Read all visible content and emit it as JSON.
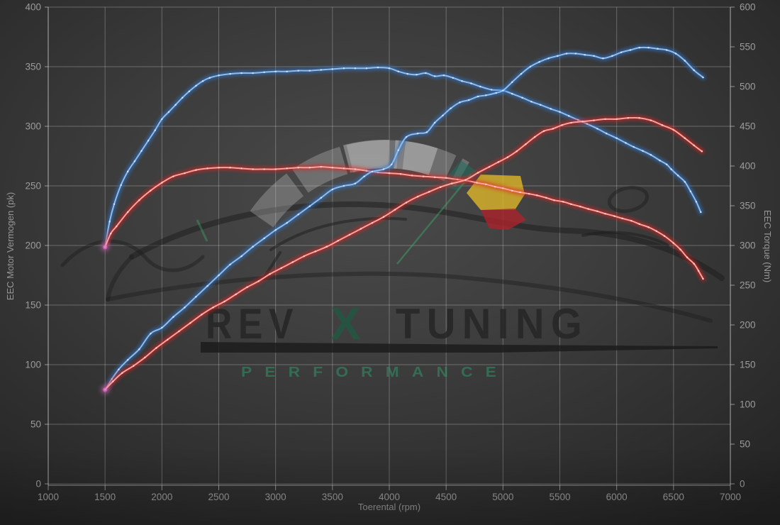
{
  "chart_data": {
    "type": "line",
    "title": "",
    "xlabel": "Toerental (rpm)",
    "ylabel_left": "EEC Motor Vermogen (pk)",
    "ylabel_right": "EEC Torque (Nm)",
    "x_range": [
      1000,
      7000
    ],
    "y_left_range": [
      0,
      400
    ],
    "y_right_range": [
      0,
      600
    ],
    "x_ticks": [
      1000,
      1500,
      2000,
      2500,
      3000,
      3500,
      4000,
      4500,
      5000,
      5500,
      6000,
      6500,
      7000
    ],
    "y_left_ticks": [
      0,
      50,
      100,
      150,
      200,
      250,
      300,
      350,
      400
    ],
    "y_right_ticks": [
      0,
      50,
      100,
      150,
      200,
      250,
      300,
      350,
      400,
      450,
      500,
      550,
      600
    ],
    "grid": true,
    "legend": "none",
    "series": [
      {
        "name": "torque-curve-blue",
        "axis": "right",
        "unit": "Nm",
        "peak": 524,
        "color_core": "#8fbcee",
        "color_glow": "#2e78d2",
        "color_dot": "#d8e8ff",
        "points": [
          [
            1500,
            298
          ],
          [
            1540,
            330
          ],
          [
            1580,
            352
          ],
          [
            1640,
            376
          ],
          [
            1700,
            393
          ],
          [
            1760,
            406
          ],
          [
            1820,
            419
          ],
          [
            1880,
            432
          ],
          [
            1940,
            445
          ],
          [
            2000,
            459
          ],
          [
            2060,
            468
          ],
          [
            2120,
            477
          ],
          [
            2180,
            486
          ],
          [
            2240,
            494
          ],
          [
            2300,
            501
          ],
          [
            2360,
            507
          ],
          [
            2420,
            511
          ],
          [
            2500,
            514
          ],
          [
            2600,
            516
          ],
          [
            2700,
            517
          ],
          [
            2800,
            517
          ],
          [
            2900,
            518
          ],
          [
            3000,
            519
          ],
          [
            3100,
            519
          ],
          [
            3200,
            520
          ],
          [
            3300,
            520
          ],
          [
            3400,
            521
          ],
          [
            3500,
            522
          ],
          [
            3600,
            523
          ],
          [
            3700,
            523
          ],
          [
            3800,
            523
          ],
          [
            3900,
            524
          ],
          [
            4000,
            523
          ],
          [
            4080,
            519
          ],
          [
            4160,
            516
          ],
          [
            4240,
            515
          ],
          [
            4320,
            517
          ],
          [
            4400,
            513
          ],
          [
            4480,
            514
          ],
          [
            4560,
            511
          ],
          [
            4640,
            507
          ],
          [
            4720,
            504
          ],
          [
            4800,
            500
          ],
          [
            4900,
            496
          ],
          [
            5000,
            495
          ],
          [
            5080,
            491
          ],
          [
            5170,
            486
          ],
          [
            5250,
            481
          ],
          [
            5330,
            477
          ],
          [
            5420,
            472
          ],
          [
            5500,
            468
          ],
          [
            5580,
            463
          ],
          [
            5660,
            458
          ],
          [
            5740,
            453
          ],
          [
            5830,
            447
          ],
          [
            5910,
            441
          ],
          [
            6000,
            435
          ],
          [
            6080,
            429
          ],
          [
            6150,
            424
          ],
          [
            6230,
            419
          ],
          [
            6300,
            414
          ],
          [
            6380,
            407
          ],
          [
            6440,
            402
          ],
          [
            6480,
            396
          ],
          [
            6540,
            388
          ],
          [
            6600,
            380
          ],
          [
            6650,
            368
          ],
          [
            6700,
            355
          ],
          [
            6740,
            342
          ]
        ]
      },
      {
        "name": "torque-curve-red",
        "axis": "right",
        "unit": "Nm",
        "peak": 399,
        "color_core": "#ffa09a",
        "color_glow": "#df2423",
        "color_dot": "#ffd6d2",
        "points": [
          [
            1500,
            298
          ],
          [
            1550,
            315
          ],
          [
            1600,
            324
          ],
          [
            1700,
            342
          ],
          [
            1800,
            357
          ],
          [
            1900,
            369
          ],
          [
            2000,
            379
          ],
          [
            2100,
            387
          ],
          [
            2200,
            391
          ],
          [
            2300,
            395
          ],
          [
            2400,
            397
          ],
          [
            2500,
            398
          ],
          [
            2600,
            398
          ],
          [
            2700,
            397
          ],
          [
            2800,
            396
          ],
          [
            2900,
            396
          ],
          [
            3000,
            396
          ],
          [
            3100,
            397
          ],
          [
            3200,
            398
          ],
          [
            3300,
            398
          ],
          [
            3400,
            399
          ],
          [
            3500,
            398
          ],
          [
            3600,
            397
          ],
          [
            3700,
            396
          ],
          [
            3800,
            394
          ],
          [
            3900,
            392
          ],
          [
            4000,
            391
          ],
          [
            4100,
            390
          ],
          [
            4200,
            388
          ],
          [
            4300,
            387
          ],
          [
            4400,
            386
          ],
          [
            4500,
            385
          ],
          [
            4600,
            383
          ],
          [
            4670,
            382
          ],
          [
            4770,
            379
          ],
          [
            4850,
            377
          ],
          [
            4930,
            374
          ],
          [
            5000,
            372
          ],
          [
            5080,
            369
          ],
          [
            5150,
            367
          ],
          [
            5230,
            365
          ],
          [
            5300,
            363
          ],
          [
            5380,
            360
          ],
          [
            5450,
            357
          ],
          [
            5530,
            355
          ],
          [
            5600,
            352
          ],
          [
            5680,
            349
          ],
          [
            5750,
            346
          ],
          [
            5830,
            343
          ],
          [
            5900,
            340
          ],
          [
            5980,
            337
          ],
          [
            6050,
            334
          ],
          [
            6130,
            331
          ],
          [
            6200,
            327
          ],
          [
            6280,
            323
          ],
          [
            6350,
            318
          ],
          [
            6420,
            312
          ],
          [
            6500,
            303
          ],
          [
            6560,
            295
          ],
          [
            6620,
            285
          ],
          [
            6680,
            277
          ],
          [
            6720,
            268
          ],
          [
            6760,
            258
          ]
        ]
      },
      {
        "name": "power-curve-blue",
        "axis": "left",
        "unit": "pk",
        "peak": 366,
        "color_core": "#8fbcee",
        "color_glow": "#2e78d2",
        "color_dot": "#d8e8ff",
        "points": [
          [
            1500,
            79
          ],
          [
            1560,
            88
          ],
          [
            1620,
            96
          ],
          [
            1700,
            104
          ],
          [
            1800,
            113
          ],
          [
            1900,
            126
          ],
          [
            2000,
            131
          ],
          [
            2100,
            140
          ],
          [
            2200,
            148
          ],
          [
            2300,
            157
          ],
          [
            2400,
            166
          ],
          [
            2500,
            175
          ],
          [
            2600,
            184
          ],
          [
            2700,
            191
          ],
          [
            2800,
            199
          ],
          [
            2900,
            206
          ],
          [
            3000,
            213
          ],
          [
            3100,
            219
          ],
          [
            3200,
            226
          ],
          [
            3300,
            233
          ],
          [
            3400,
            240
          ],
          [
            3500,
            247
          ],
          [
            3600,
            250
          ],
          [
            3700,
            252
          ],
          [
            3780,
            258
          ],
          [
            3850,
            262
          ],
          [
            3950,
            264
          ],
          [
            4020,
            268
          ],
          [
            4080,
            280
          ],
          [
            4150,
            291
          ],
          [
            4250,
            294
          ],
          [
            4330,
            295
          ],
          [
            4400,
            303
          ],
          [
            4470,
            309
          ],
          [
            4540,
            315
          ],
          [
            4620,
            320
          ],
          [
            4700,
            322
          ],
          [
            4780,
            325
          ],
          [
            4850,
            326
          ],
          [
            4940,
            328
          ],
          [
            5000,
            330
          ],
          [
            5080,
            337
          ],
          [
            5160,
            344
          ],
          [
            5240,
            350
          ],
          [
            5320,
            354
          ],
          [
            5400,
            357
          ],
          [
            5480,
            359
          ],
          [
            5560,
            361
          ],
          [
            5640,
            361
          ],
          [
            5720,
            360
          ],
          [
            5800,
            359
          ],
          [
            5880,
            357
          ],
          [
            5960,
            359
          ],
          [
            6040,
            362
          ],
          [
            6120,
            364
          ],
          [
            6200,
            366
          ],
          [
            6280,
            366
          ],
          [
            6360,
            365
          ],
          [
            6440,
            364
          ],
          [
            6520,
            361
          ],
          [
            6600,
            355
          ],
          [
            6680,
            347
          ],
          [
            6760,
            341
          ]
        ]
      },
      {
        "name": "power-curve-red",
        "axis": "left",
        "unit": "pk",
        "peak": 307,
        "color_core": "#ffa09a",
        "color_glow": "#df2423",
        "color_dot": "#ffd6d2",
        "points": [
          [
            1500,
            79
          ],
          [
            1570,
            86
          ],
          [
            1650,
            93
          ],
          [
            1750,
            99
          ],
          [
            1850,
            106
          ],
          [
            1950,
            114
          ],
          [
            2050,
            121
          ],
          [
            2150,
            128
          ],
          [
            2250,
            135
          ],
          [
            2350,
            142
          ],
          [
            2450,
            148
          ],
          [
            2550,
            153
          ],
          [
            2650,
            159
          ],
          [
            2750,
            165
          ],
          [
            2850,
            170
          ],
          [
            2950,
            176
          ],
          [
            3050,
            181
          ],
          [
            3150,
            186
          ],
          [
            3250,
            191
          ],
          [
            3350,
            195
          ],
          [
            3450,
            199
          ],
          [
            3550,
            204
          ],
          [
            3650,
            209
          ],
          [
            3750,
            214
          ],
          [
            3850,
            219
          ],
          [
            3950,
            224
          ],
          [
            4050,
            230
          ],
          [
            4150,
            236
          ],
          [
            4250,
            241
          ],
          [
            4350,
            245
          ],
          [
            4450,
            249
          ],
          [
            4550,
            252
          ],
          [
            4670,
            255
          ],
          [
            4780,
            261
          ],
          [
            4880,
            266
          ],
          [
            4960,
            270
          ],
          [
            5040,
            274
          ],
          [
            5120,
            279
          ],
          [
            5200,
            285
          ],
          [
            5280,
            291
          ],
          [
            5360,
            296
          ],
          [
            5440,
            298
          ],
          [
            5520,
            301
          ],
          [
            5600,
            303
          ],
          [
            5700,
            304
          ],
          [
            5800,
            305
          ],
          [
            5900,
            306
          ],
          [
            6000,
            306
          ],
          [
            6100,
            307
          ],
          [
            6200,
            307
          ],
          [
            6300,
            305
          ],
          [
            6400,
            301
          ],
          [
            6500,
            297
          ],
          [
            6600,
            290
          ],
          [
            6680,
            284
          ],
          [
            6750,
            279
          ]
        ]
      }
    ],
    "start_marker": {
      "rpm": 1500,
      "color": "#e473d0"
    },
    "watermark": {
      "brand_rev": "REV",
      "brand_x": "X",
      "brand_tuning": "TUNING",
      "subtitle": "PERFORMANCE",
      "accent_green": "#2f9668",
      "text_color": "#262626",
      "gauge_yellow": "#e1b928",
      "gauge_red": "#aa232a",
      "gauge_teal": "#1e6e5f"
    }
  }
}
